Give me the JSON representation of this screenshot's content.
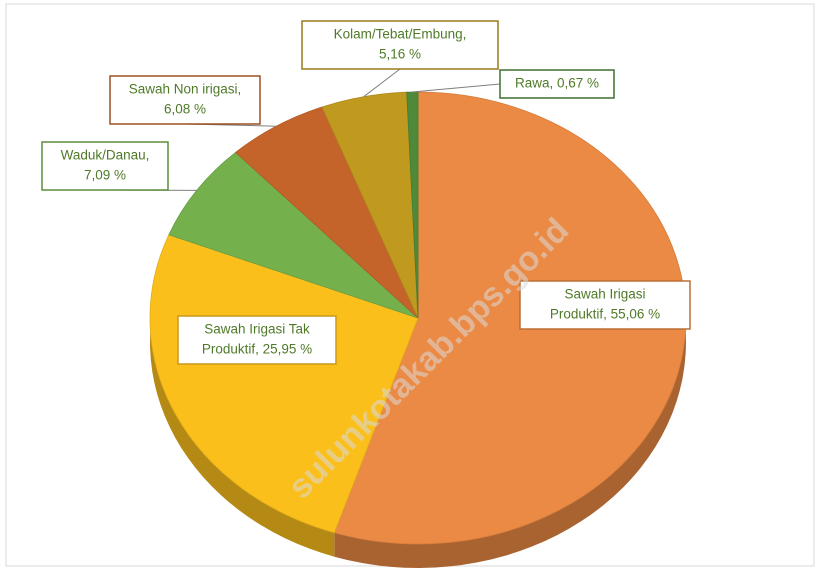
{
  "chart_data": {
    "type": "pie3d",
    "labels": [
      [
        "Sawah Irigasi",
        "Produktif, 55,06 %"
      ],
      [
        "Sawah Irigasi Tak",
        "Produktif, 25,95 %"
      ],
      [
        "Waduk/Danau,",
        "7,09 %"
      ],
      [
        "Sawah Non irigasi,",
        "6,08 %"
      ],
      [
        "Kolam/Tebat/Embung,",
        "5,16 %"
      ],
      [
        "Rawa, 0,67 %"
      ]
    ],
    "values": [
      55.06,
      25.95,
      7.09,
      6.08,
      5.16,
      0.67
    ],
    "colors": [
      "#eb8a44",
      "#fbbf1c",
      "#74b04c",
      "#c5642a",
      "#bf9a1e",
      "#4f8a3a"
    ],
    "watermark": "sulunkotakab.bps.go.id"
  }
}
